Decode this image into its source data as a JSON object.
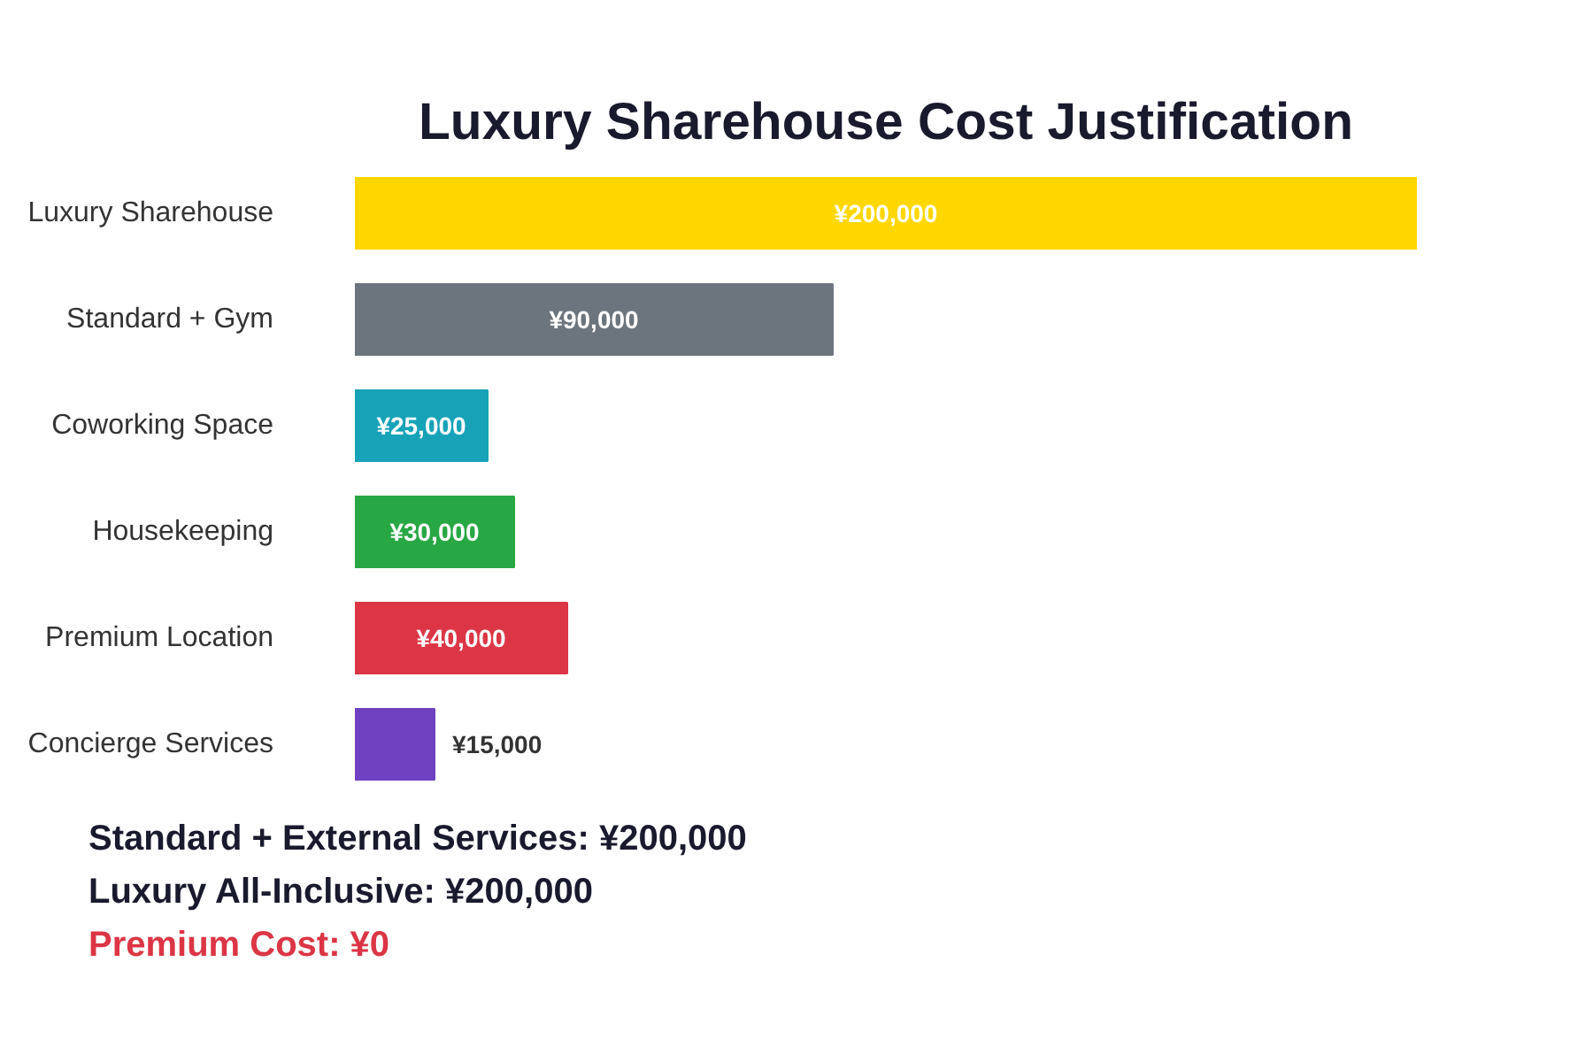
{
  "chart_data": {
    "type": "bar",
    "orientation": "horizontal",
    "title": "Luxury Sharehouse Cost Justification",
    "categories": [
      "Luxury Sharehouse",
      "Standard + Gym",
      "Coworking Space",
      "Housekeeping",
      "Premium Location",
      "Concierge Services"
    ],
    "values": [
      200000,
      90000,
      25000,
      30000,
      40000,
      15000
    ],
    "colors": [
      "#ffd700",
      "#6c757d",
      "#17a2b8",
      "#28a745",
      "#dc3545",
      "#6f42c1"
    ],
    "value_labels": [
      "¥200,000",
      "¥90,000",
      "¥25,000",
      "¥30,000",
      "¥40,000",
      "¥15,000"
    ],
    "annotations": [
      "Standard + External Services: ¥200,000",
      "Luxury All-Inclusive: ¥200,000",
      "Premium Cost: ¥0"
    ]
  }
}
